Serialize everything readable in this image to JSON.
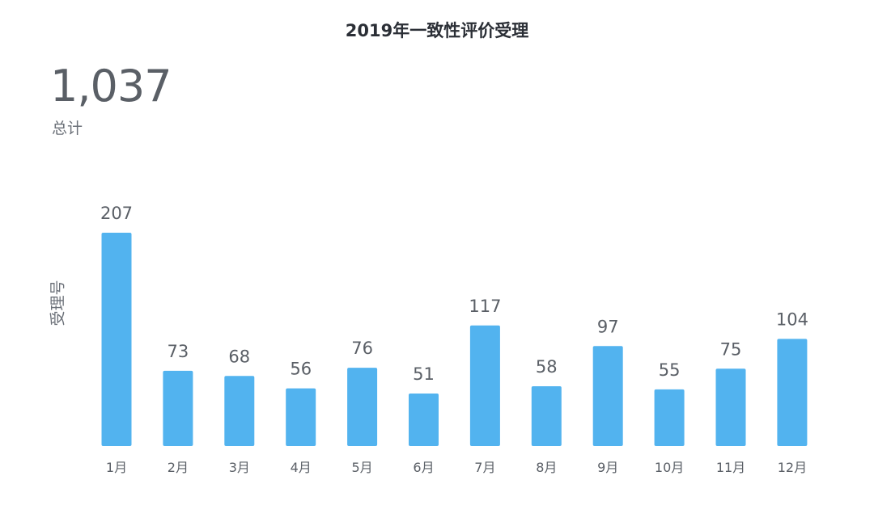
{
  "header": {
    "title": "2019年一致性评价受理"
  },
  "summary": {
    "total": "1,037",
    "total_label": "总计"
  },
  "chart_data": {
    "type": "bar",
    "title": "2019年一致性评价受理",
    "xlabel": "",
    "ylabel": "受理号",
    "categories": [
      "1月",
      "2月",
      "3月",
      "4月",
      "5月",
      "6月",
      "7月",
      "8月",
      "9月",
      "10月",
      "11月",
      "12月"
    ],
    "values": [
      207,
      73,
      68,
      56,
      76,
      51,
      117,
      58,
      97,
      55,
      75,
      104
    ],
    "data_labels": true,
    "grid": false,
    "legend": "none",
    "colors": {
      "bar": "#52b3ef"
    }
  }
}
